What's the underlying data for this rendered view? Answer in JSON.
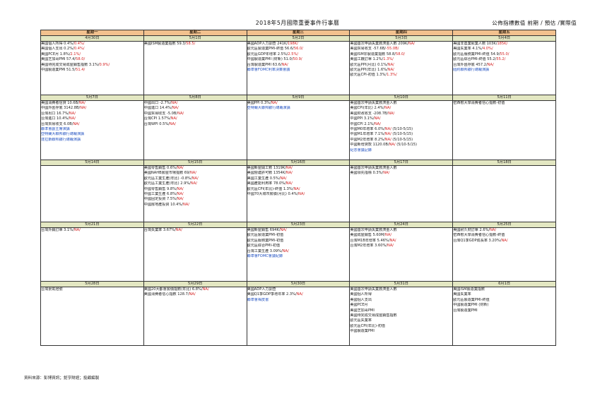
{
  "title": "2018年5月國際重要事件行事曆",
  "legend": "公佈指標數值 前期 / 預估 /實際值",
  "weekdays": [
    "星期一",
    "星期二",
    "星期三",
    "星期四",
    "星期五"
  ],
  "weeks": [
    {
      "days": [
        {
          "date": "4月30日",
          "events": [
            {
              "text": "美國個人所得 0.4%/",
              "red": "0.4%/",
              "blue": ""
            },
            {
              "text": "美國個人支出 0.2%/",
              "red": "0.4%/",
              "blue": ""
            },
            {
              "text": "美國PCE月 1.8%/",
              "red": "2.1%/",
              "blue": ""
            },
            {
              "text": "美國芝加哥PMI 57.4/",
              "red": "58.0/",
              "blue": ""
            },
            {
              "text": "美國待完成交易成屋銷售指數 3.1%/",
              "red": "0.9%/",
              "blue": ""
            },
            {
              "text": "中國製造業PMI 51.5/",
              "red": "51.4/",
              "blue": ""
            }
          ]
        },
        {
          "date": "5月1日",
          "events": [
            {
              "text": "美國ISM製造業指數 59.3/",
              "red": "58.5/",
              "blue": ""
            }
          ]
        },
        {
          "date": "5月2日",
          "events": [
            {
              "text": "美國ADP人力調查 241K/",
              "red": "198K/",
              "blue": ""
            },
            {
              "text": "歐元區製造業PMI-終值 56.6/",
              "red": "56.0/",
              "blue": ""
            },
            {
              "text": "歐元區GDP年增率 2.5%/",
              "red": "2.5%/",
              "blue": ""
            },
            {
              "text": "中國製造業PMI (財新) 51.0/",
              "red": "50.9/",
              "blue": ""
            },
            {
              "text": "台灣製造業PMI 63.6/",
              "red": "NA/",
              "blue": ""
            },
            {
              "text": "",
              "red": "",
              "blue": "聯準會FOMC利率決策會議"
            }
          ]
        },
        {
          "date": "5月3日",
          "events": [
            {
              "text": "美國首次申請失業救濟金人數 209K/",
              "red": "NA/",
              "blue": ""
            },
            {
              "text": "美國貿易收支 -57.6B/",
              "red": "-55.0B/",
              "blue": ""
            },
            {
              "text": "美國ISM非製造業指數 58.8/",
              "red": "58.0/",
              "blue": ""
            },
            {
              "text": "美國工廠訂單 1.2%/",
              "red": "1.3%/",
              "blue": ""
            },
            {
              "text": "歐元區PPI(月比) 0.1%/",
              "red": "NA/",
              "blue": ""
            },
            {
              "text": "歐元區PPI(年比) 1.6%/",
              "red": "NA/",
              "blue": ""
            },
            {
              "text": "歐元區CPI-初值 1.3%/",
              "red": "1.3%/",
              "blue": ""
            }
          ]
        },
        {
          "date": "5月4日",
          "events": [
            {
              "text": "美國非農業就業人數 103K/",
              "red": "185K/",
              "blue": ""
            },
            {
              "text": "美國失業率 4.1%/",
              "red": "4.0%/",
              "blue": ""
            },
            {
              "text": "歐元區服務業PMI-終值 54.9/",
              "red": "55.0/",
              "blue": ""
            },
            {
              "text": "歐元區綜合PMI-終值 55.2/",
              "red": "55.2/",
              "blue": ""
            },
            {
              "text": "台灣外匯存底 457.2/",
              "red": "NA/",
              "blue": ""
            },
            {
              "text": "",
              "red": "",
              "blue": "紐約聯邦銀行總裁演講"
            }
          ]
        }
      ]
    },
    {
      "days": [
        {
          "date": "5月7日",
          "events": [
            {
              "text": "美國消費者信貸 10.6B/",
              "red": "NA/",
              "blue": ""
            },
            {
              "text": "中國外匯存底 3142.8B/",
              "red": "NA/",
              "blue": ""
            },
            {
              "text": "台灣出口 16.7%/",
              "red": "NA/",
              "blue": ""
            },
            {
              "text": "台灣進口 10.4%/",
              "red": "NA/",
              "blue": ""
            },
            {
              "text": "台灣貿易收支 6.0B/",
              "red": "NA/",
              "blue": ""
            },
            {
              "text": "",
              "red": "",
              "blue": "聯準會副主席演講"
            },
            {
              "text": "",
              "red": "",
              "blue": "亞特蘭大聯邦銀行總裁演講"
            },
            {
              "text": "",
              "red": "",
              "blue": "達拉斯聯邦銀行總裁演講"
            }
          ]
        },
        {
          "date": "5月8日",
          "events": [
            {
              "text": "中國出口 -2.7%/",
              "red": "NA/",
              "blue": ""
            },
            {
              "text": "中國進口 14.4%/",
              "red": "NA/",
              "blue": ""
            },
            {
              "text": "中國貿易收支 -5.0B/",
              "red": "NA/",
              "blue": ""
            },
            {
              "text": "台灣CPI 1.57%/",
              "red": "NA/",
              "blue": ""
            },
            {
              "text": "台灣WPI 0.5%/",
              "red": "NA/",
              "blue": ""
            }
          ]
        },
        {
          "date": "5月9日",
          "events": [
            {
              "text": "美國PPI 0.3%/",
              "red": "NA/",
              "blue": ""
            },
            {
              "text": "",
              "red": "",
              "blue": "亞特蘭大聯邦銀行總裁演講"
            }
          ]
        },
        {
          "date": "5月10日",
          "events": [
            {
              "text": "美國首次申請失業救濟金人數",
              "red": "",
              "blue": ""
            },
            {
              "text": "美國CPI(年比) 2.4%/",
              "red": "NA/",
              "blue": ""
            },
            {
              "text": "美國財政收支 -208.7B/",
              "red": "NA/",
              "blue": ""
            },
            {
              "text": "中國PPI 3.1%/",
              "red": "NA/",
              "blue": ""
            },
            {
              "text": "中國CPI 2.1%/",
              "red": "NA/",
              "blue": ""
            },
            {
              "text": "中國M0年增率 6.0%/",
              "red": "NA/",
              "blue": "",
              "tail": "  (5/10-5/15)"
            },
            {
              "text": "中國M1年增率 7.1%/",
              "red": "NA/",
              "blue": "",
              "tail": "  (5/10-5/15)"
            },
            {
              "text": "中國M2年增率 8.2%/",
              "red": "NA/",
              "blue": "",
              "tail": "  (5/10-5/15)"
            },
            {
              "text": "中國新增貸款 1120.0B/",
              "red": "NA/",
              "blue": "",
              "tail": "  (5/10-5/15)"
            },
            {
              "text": "",
              "red": "",
              "blue": "紀念會議記錄"
            }
          ]
        },
        {
          "date": "5月11日",
          "events": [
            {
              "text": "密西根大學消費者信心指數-初值",
              "red": "",
              "blue": ""
            }
          ]
        }
      ]
    },
    {
      "days": [
        {
          "date": "5月14日",
          "events": []
        },
        {
          "date": "5月15日",
          "events": [
            {
              "text": "美國零售銷售 0.6%/",
              "red": "NA/",
              "blue": ""
            },
            {
              "text": "美國NAHB房屋市場指數 69/",
              "red": "NA/",
              "blue": ""
            },
            {
              "text": "歐元區工業生產(年比) -0.8%/",
              "red": "NA/",
              "blue": ""
            },
            {
              "text": "歐元區工業生產(年比) 2.9%/",
              "red": "NA/",
              "blue": ""
            },
            {
              "text": "中國零售銷售 9.8%/",
              "red": "NA/",
              "blue": ""
            },
            {
              "text": "中國工業生產 6.8%/",
              "red": "NA/",
              "blue": ""
            },
            {
              "text": "中國固定投資 7.5%/",
              "red": "NA/",
              "blue": ""
            },
            {
              "text": "中國房地產投資 10.4%/",
              "red": "NA/",
              "blue": ""
            }
          ]
        },
        {
          "date": "5月16日",
          "events": [
            {
              "text": "美國新屋開工數 1319K/",
              "red": "NA/",
              "blue": ""
            },
            {
              "text": "美國營建許可數 1354K/",
              "red": "NA/",
              "blue": ""
            },
            {
              "text": "美國工業生產 0.5%/",
              "red": "NA/",
              "blue": ""
            },
            {
              "text": "美國產能利用率 78.0%/",
              "red": "NA/",
              "blue": ""
            },
            {
              "text": "歐元區CPI(年比)-終值 1.3%/",
              "red": "NA/",
              "blue": ""
            },
            {
              "text": "中國70大城市房價(月比) 0.4%/",
              "red": "NA/",
              "blue": ""
            }
          ]
        },
        {
          "date": "5月17日",
          "events": [
            {
              "text": "美國首次申請失業救濟金人數",
              "red": "",
              "blue": ""
            },
            {
              "text": "美國領先指標 0.3%/",
              "red": "NA/",
              "blue": ""
            }
          ]
        },
        {
          "date": "5月18日",
          "events": []
        }
      ]
    },
    {
      "days": [
        {
          "date": "5月21日",
          "events": [
            {
              "text": "台灣外銷訂單 3.1%/",
              "red": "NA/",
              "blue": ""
            }
          ]
        },
        {
          "date": "5月22日",
          "events": [
            {
              "text": "台灣失業率 3.67%/",
              "red": "NA/",
              "blue": ""
            }
          ]
        },
        {
          "date": "5月23日",
          "events": [
            {
              "text": "美國新屋銷售 694K/",
              "red": "NA/",
              "blue": ""
            },
            {
              "text": "歐元區製造業PMI-初值",
              "red": "",
              "blue": ""
            },
            {
              "text": "歐元區服務業PMI-初值",
              "red": "",
              "blue": ""
            },
            {
              "text": "歐元區綜合PMI-初值",
              "red": "",
              "blue": ""
            },
            {
              "text": "台灣工業生產 3.09%/",
              "red": "NA/",
              "blue": ""
            },
            {
              "text": "",
              "red": "",
              "blue": "聯準會FOMC會議紀錄"
            }
          ]
        },
        {
          "date": "5月24日",
          "events": [
            {
              "text": "美國首次申請失業救濟金人數",
              "red": "",
              "blue": ""
            },
            {
              "text": "美國成屋銷售 5.60M/",
              "red": "NA/",
              "blue": ""
            },
            {
              "text": "台灣M1B年增率 5.46%/",
              "red": "NA/",
              "blue": ""
            },
            {
              "text": "台灣M2年增率 3.60%/",
              "red": "NA/",
              "blue": ""
            }
          ]
        },
        {
          "date": "5月25日",
          "events": [
            {
              "text": "美國耐久財訂單 2.6%/",
              "red": "NA/",
              "blue": ""
            },
            {
              "text": "密西根大學消費者信心指數-終值",
              "red": "",
              "blue": ""
            },
            {
              "text": "台灣Q1季GDP成長率 3.20%/",
              "red": "NA/",
              "blue": ""
            }
          ]
        }
      ]
    },
    {
      "days": [
        {
          "date": "5月28日",
          "events": [
            {
              "text": "台灣景氣燈號",
              "red": "",
              "blue": ""
            }
          ]
        },
        {
          "date": "5月29日",
          "events": [
            {
              "text": "美國20大都會房價指數(年比) 6.8%/",
              "red": "NA/",
              "blue": ""
            },
            {
              "text": "美國消費者信心指數 128.7/",
              "red": "NA/",
              "blue": ""
            }
          ]
        },
        {
          "date": "5月30日",
          "events": [
            {
              "text": "美國ADP人力調查",
              "red": "",
              "blue": ""
            },
            {
              "text": "美國Q1季GDP季增年率 2.3%/",
              "red": "NA/",
              "blue": ""
            },
            {
              "text": "",
              "red": "",
              "blue": "聯準會褐皮書"
            }
          ]
        },
        {
          "date": "5月31日",
          "events": [
            {
              "text": "美國首次申請失業救濟金人數",
              "red": "",
              "blue": ""
            },
            {
              "text": "美國個人所得",
              "red": "",
              "blue": ""
            },
            {
              "text": "美國個人支出",
              "red": "",
              "blue": ""
            },
            {
              "text": "美國PCE月",
              "red": "",
              "blue": ""
            },
            {
              "text": "美國芝加哥PMI",
              "red": "",
              "blue": ""
            },
            {
              "text": "美國待完成交易成屋銷售指數",
              "red": "",
              "blue": ""
            },
            {
              "text": "歐元區失業率",
              "red": "",
              "blue": ""
            },
            {
              "text": "歐元區CPI(年比)-初值",
              "red": "",
              "blue": ""
            },
            {
              "text": "中國製造業PMI",
              "red": "",
              "blue": ""
            }
          ]
        },
        {
          "date": "6月1日",
          "events": [
            {
              "text": "美國ISM製造業指數",
              "red": "",
              "blue": ""
            },
            {
              "text": "美國失業率",
              "red": "",
              "blue": ""
            },
            {
              "text": "歐元區製造業PMI-終值",
              "red": "",
              "blue": ""
            },
            {
              "text": "中國製造業PMI (財新)",
              "red": "",
              "blue": ""
            },
            {
              "text": "台灣製造業PMI",
              "red": "",
              "blue": ""
            }
          ]
        }
      ]
    }
  ],
  "source": "資料來源：彭博資訊；鉅亨財經；投顧編製",
  "colors": {
    "header": "#f2c18e",
    "date": "#e3e7c2",
    "estimate": "#d42020",
    "event": "#2050c0"
  }
}
